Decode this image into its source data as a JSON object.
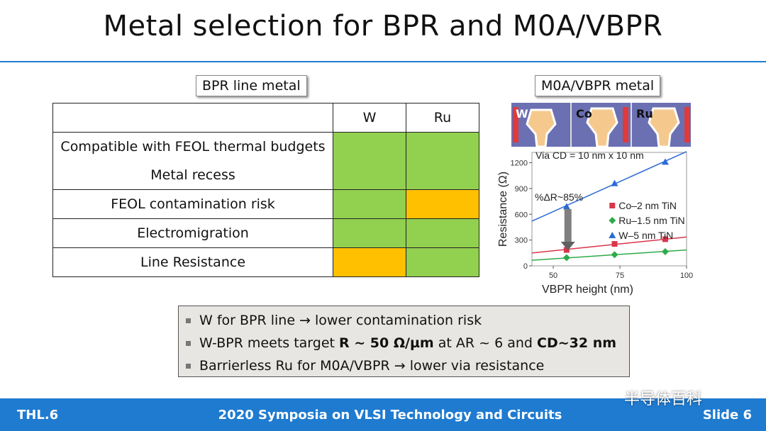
{
  "slide": {
    "title": "Metal selection for BPR and M0A/VBPR",
    "bpr_label": "BPR line metal",
    "m0a_label": "M0A/VBPR metal"
  },
  "table": {
    "headers": [
      "W",
      "Ru"
    ],
    "rows": [
      {
        "label": "Compatible with FEOL thermal budgets",
        "w": "green",
        "ru": "green"
      },
      {
        "label": "Metal recess",
        "w": "green",
        "ru": "green"
      },
      {
        "label": "FEOL contamination risk",
        "w": "green",
        "ru": "orange"
      },
      {
        "label": "Electromigration",
        "w": "green",
        "ru": "green"
      },
      {
        "label": "Line Resistance",
        "w": "orange",
        "ru": "green"
      }
    ]
  },
  "image_strip": {
    "labels": [
      "W",
      "Co",
      "Ru"
    ]
  },
  "chart_data": {
    "type": "scatter",
    "annotation_top": "Via CD = 10 nm x 10 nm",
    "annotation_delta": "%ΔR~85%",
    "xlabel": "VBPR height (nm)",
    "ylabel": "Resistance (Ω)",
    "xlim": [
      42,
      100
    ],
    "ylim": [
      0,
      1320
    ],
    "xticks": [
      50,
      75,
      100
    ],
    "yticks": [
      0,
      300,
      600,
      900,
      1200
    ],
    "series": [
      {
        "name": "Co–2 nm TiN",
        "color": "#d9364a",
        "marker": "square",
        "x": [
          55,
          73,
          92
        ],
        "y": [
          185,
          255,
          310
        ],
        "fit": [
          [
            42,
            150
          ],
          [
            100,
            335
          ]
        ]
      },
      {
        "name": "Ru–1.5 nm TiN",
        "color": "#2eaa4a",
        "marker": "diamond",
        "x": [
          55,
          73,
          92
        ],
        "y": [
          95,
          130,
          165
        ],
        "fit": [
          [
            42,
            65
          ],
          [
            100,
            185
          ]
        ]
      },
      {
        "name": "W–5 nm TiN",
        "color": "#2b6bd6",
        "marker": "triangle",
        "x": [
          55,
          73,
          92
        ],
        "y": [
          690,
          960,
          1210
        ],
        "fit": [
          [
            42,
            520
          ],
          [
            100,
            1330
          ]
        ]
      }
    ]
  },
  "bullets": [
    {
      "parts": [
        {
          "t": "W for BPR line → lower contamination risk",
          "b": false
        }
      ]
    },
    {
      "parts": [
        {
          "t": "W-BPR meets target ",
          "b": false
        },
        {
          "t": "R ~ 50 Ω/µm",
          "b": true
        },
        {
          "t": " at AR ~ 6 and ",
          "b": false
        },
        {
          "t": "CD~32 nm",
          "b": true
        }
      ]
    },
    {
      "parts": [
        {
          "t": "Barrierless Ru for M0A/VBPR → lower via resistance",
          "b": false
        }
      ]
    }
  ],
  "footer": {
    "left": "THL.6",
    "center": "2020 Symposia on VLSI Technology and Circuits",
    "right": "Slide 6"
  },
  "watermark": "半导体百科",
  "colors": {
    "accent": "#1f7bd0",
    "green": "#92d050",
    "orange": "#ffc000"
  }
}
